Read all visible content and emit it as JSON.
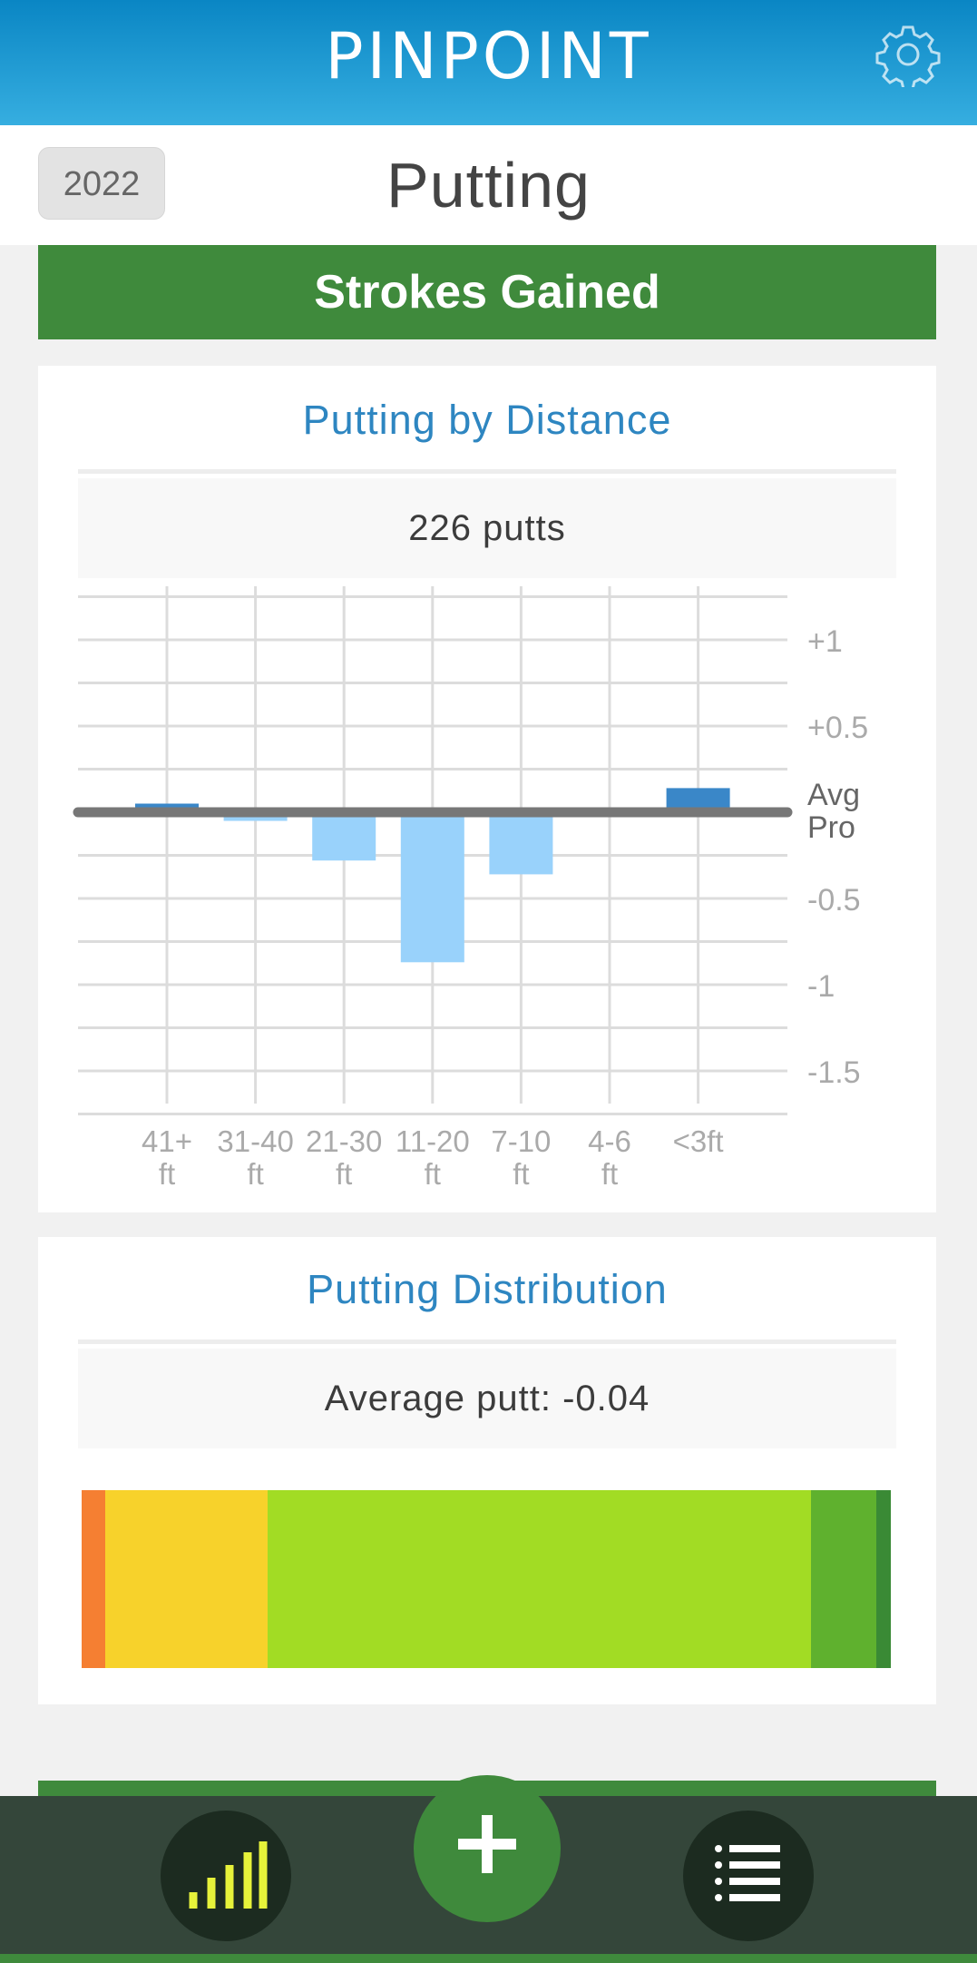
{
  "header": {
    "logo_text": "PINPOINT",
    "settings_icon": "gear-icon"
  },
  "subheader": {
    "year": "2022",
    "title": "Putting"
  },
  "banner": {
    "label": "Strokes Gained"
  },
  "distance_card": {
    "title": "Putting by Distance",
    "summary": "226 putts"
  },
  "distribution_card": {
    "title": "Putting Distribution",
    "summary": "Average putt: -0.04",
    "segments": [
      {
        "fraction": 0.029,
        "color": "#f57f32"
      },
      {
        "fraction": 0.201,
        "color": "#f7d22b"
      },
      {
        "fraction": 0.671,
        "color": "#a2dc24"
      },
      {
        "fraction": 0.081,
        "color": "#5fb12e"
      },
      {
        "fraction": 0.018,
        "color": "#3a8a35"
      }
    ]
  },
  "chart_data": {
    "type": "bar",
    "categories": [
      "41+ ft",
      "31-40 ft",
      "21-30 ft",
      "11-20 ft",
      "7-10 ft",
      "4-6 ft",
      "<3ft"
    ],
    "values": [
      0.05,
      -0.05,
      -0.28,
      -0.87,
      -0.36,
      -0.02,
      0.14
    ],
    "y_tick_labels": [
      {
        "value": 1,
        "label": "+1"
      },
      {
        "value": 0.5,
        "label": "+0.5"
      },
      {
        "value": -0.5,
        "label": "-0.5"
      },
      {
        "value": -1,
        "label": "-1"
      },
      {
        "value": -1.5,
        "label": "-1.5"
      }
    ],
    "baseline_label": [
      "Avg",
      "Pro"
    ],
    "ylim": [
      -1.75,
      1.25
    ],
    "grid": true,
    "positive_color": "#3a87c8",
    "negative_color": "#99d2fb",
    "baseline_color": "#777777"
  },
  "nav": {
    "stats_icon": "bar-chart-icon",
    "add_icon": "plus-icon",
    "list_icon": "list-icon"
  }
}
